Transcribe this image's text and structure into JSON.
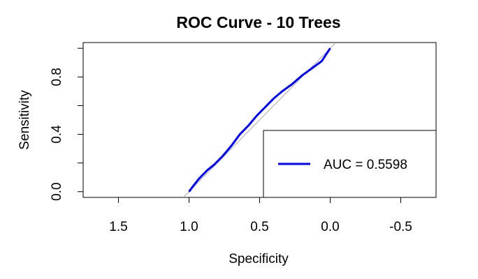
{
  "chart_data": {
    "type": "line",
    "title": "ROC Curve - 10 Trees",
    "xlabel": "Specificity",
    "ylabel": "Sensitivity",
    "xlim": [
      1.75,
      -0.75
    ],
    "ylim": [
      -0.04,
      1.04
    ],
    "x_reversed": true,
    "x_ticks": [
      1.5,
      1.0,
      0.5,
      0.0,
      -0.5
    ],
    "x_tick_labels": [
      "1.5",
      "1.0",
      "0.5",
      "0.0",
      "-0.5"
    ],
    "y_ticks": [
      0.0,
      0.2,
      0.4,
      0.6,
      0.8,
      1.0
    ],
    "y_tick_labels": [
      "0.0",
      "",
      "0.4",
      "",
      "0.8",
      ""
    ],
    "grid": false,
    "series": [
      {
        "name": "ROC",
        "color": "#0000ff",
        "x": [
          1.0,
          0.97,
          0.93,
          0.87,
          0.82,
          0.76,
          0.7,
          0.64,
          0.58,
          0.52,
          0.46,
          0.4,
          0.34,
          0.27,
          0.2,
          0.13,
          0.06,
          0.0
        ],
        "y": [
          0.0,
          0.04,
          0.09,
          0.15,
          0.19,
          0.25,
          0.32,
          0.4,
          0.46,
          0.53,
          0.59,
          0.65,
          0.7,
          0.75,
          0.81,
          0.86,
          0.91,
          1.0
        ]
      },
      {
        "name": "reference",
        "color": "#aaaaaa",
        "x": [
          1.04,
          -0.04
        ],
        "y": [
          -0.04,
          1.04
        ]
      }
    ],
    "legend": {
      "position": "bottom-right",
      "entries": [
        {
          "label": "AUC = 0.5598",
          "color": "#0000ff"
        }
      ]
    }
  }
}
